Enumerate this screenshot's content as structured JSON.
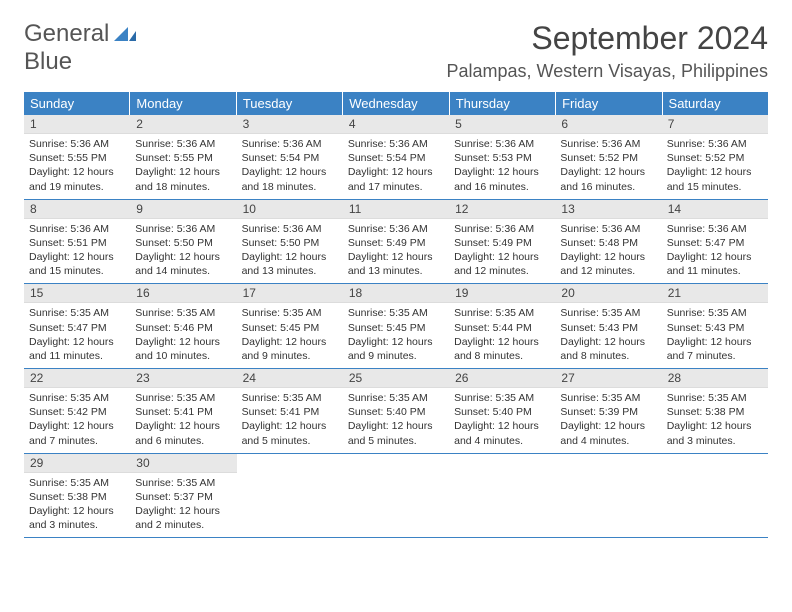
{
  "logo": {
    "word1": "General",
    "word2": "Blue"
  },
  "title": "September 2024",
  "location": "Palampas, Western Visayas, Philippines",
  "colors": {
    "accent": "#3b82c4",
    "daynum_bg": "#e8e8e8",
    "text": "#333333",
    "title_text": "#444444"
  },
  "daysOfWeek": [
    "Sunday",
    "Monday",
    "Tuesday",
    "Wednesday",
    "Thursday",
    "Friday",
    "Saturday"
  ],
  "weeks": [
    [
      {
        "n": "1",
        "sr": "Sunrise: 5:36 AM",
        "ss": "Sunset: 5:55 PM",
        "d1": "Daylight: 12 hours",
        "d2": "and 19 minutes."
      },
      {
        "n": "2",
        "sr": "Sunrise: 5:36 AM",
        "ss": "Sunset: 5:55 PM",
        "d1": "Daylight: 12 hours",
        "d2": "and 18 minutes."
      },
      {
        "n": "3",
        "sr": "Sunrise: 5:36 AM",
        "ss": "Sunset: 5:54 PM",
        "d1": "Daylight: 12 hours",
        "d2": "and 18 minutes."
      },
      {
        "n": "4",
        "sr": "Sunrise: 5:36 AM",
        "ss": "Sunset: 5:54 PM",
        "d1": "Daylight: 12 hours",
        "d2": "and 17 minutes."
      },
      {
        "n": "5",
        "sr": "Sunrise: 5:36 AM",
        "ss": "Sunset: 5:53 PM",
        "d1": "Daylight: 12 hours",
        "d2": "and 16 minutes."
      },
      {
        "n": "6",
        "sr": "Sunrise: 5:36 AM",
        "ss": "Sunset: 5:52 PM",
        "d1": "Daylight: 12 hours",
        "d2": "and 16 minutes."
      },
      {
        "n": "7",
        "sr": "Sunrise: 5:36 AM",
        "ss": "Sunset: 5:52 PM",
        "d1": "Daylight: 12 hours",
        "d2": "and 15 minutes."
      }
    ],
    [
      {
        "n": "8",
        "sr": "Sunrise: 5:36 AM",
        "ss": "Sunset: 5:51 PM",
        "d1": "Daylight: 12 hours",
        "d2": "and 15 minutes."
      },
      {
        "n": "9",
        "sr": "Sunrise: 5:36 AM",
        "ss": "Sunset: 5:50 PM",
        "d1": "Daylight: 12 hours",
        "d2": "and 14 minutes."
      },
      {
        "n": "10",
        "sr": "Sunrise: 5:36 AM",
        "ss": "Sunset: 5:50 PM",
        "d1": "Daylight: 12 hours",
        "d2": "and 13 minutes."
      },
      {
        "n": "11",
        "sr": "Sunrise: 5:36 AM",
        "ss": "Sunset: 5:49 PM",
        "d1": "Daylight: 12 hours",
        "d2": "and 13 minutes."
      },
      {
        "n": "12",
        "sr": "Sunrise: 5:36 AM",
        "ss": "Sunset: 5:49 PM",
        "d1": "Daylight: 12 hours",
        "d2": "and 12 minutes."
      },
      {
        "n": "13",
        "sr": "Sunrise: 5:36 AM",
        "ss": "Sunset: 5:48 PM",
        "d1": "Daylight: 12 hours",
        "d2": "and 12 minutes."
      },
      {
        "n": "14",
        "sr": "Sunrise: 5:36 AM",
        "ss": "Sunset: 5:47 PM",
        "d1": "Daylight: 12 hours",
        "d2": "and 11 minutes."
      }
    ],
    [
      {
        "n": "15",
        "sr": "Sunrise: 5:35 AM",
        "ss": "Sunset: 5:47 PM",
        "d1": "Daylight: 12 hours",
        "d2": "and 11 minutes."
      },
      {
        "n": "16",
        "sr": "Sunrise: 5:35 AM",
        "ss": "Sunset: 5:46 PM",
        "d1": "Daylight: 12 hours",
        "d2": "and 10 minutes."
      },
      {
        "n": "17",
        "sr": "Sunrise: 5:35 AM",
        "ss": "Sunset: 5:45 PM",
        "d1": "Daylight: 12 hours",
        "d2": "and 9 minutes."
      },
      {
        "n": "18",
        "sr": "Sunrise: 5:35 AM",
        "ss": "Sunset: 5:45 PM",
        "d1": "Daylight: 12 hours",
        "d2": "and 9 minutes."
      },
      {
        "n": "19",
        "sr": "Sunrise: 5:35 AM",
        "ss": "Sunset: 5:44 PM",
        "d1": "Daylight: 12 hours",
        "d2": "and 8 minutes."
      },
      {
        "n": "20",
        "sr": "Sunrise: 5:35 AM",
        "ss": "Sunset: 5:43 PM",
        "d1": "Daylight: 12 hours",
        "d2": "and 8 minutes."
      },
      {
        "n": "21",
        "sr": "Sunrise: 5:35 AM",
        "ss": "Sunset: 5:43 PM",
        "d1": "Daylight: 12 hours",
        "d2": "and 7 minutes."
      }
    ],
    [
      {
        "n": "22",
        "sr": "Sunrise: 5:35 AM",
        "ss": "Sunset: 5:42 PM",
        "d1": "Daylight: 12 hours",
        "d2": "and 7 minutes."
      },
      {
        "n": "23",
        "sr": "Sunrise: 5:35 AM",
        "ss": "Sunset: 5:41 PM",
        "d1": "Daylight: 12 hours",
        "d2": "and 6 minutes."
      },
      {
        "n": "24",
        "sr": "Sunrise: 5:35 AM",
        "ss": "Sunset: 5:41 PM",
        "d1": "Daylight: 12 hours",
        "d2": "and 5 minutes."
      },
      {
        "n": "25",
        "sr": "Sunrise: 5:35 AM",
        "ss": "Sunset: 5:40 PM",
        "d1": "Daylight: 12 hours",
        "d2": "and 5 minutes."
      },
      {
        "n": "26",
        "sr": "Sunrise: 5:35 AM",
        "ss": "Sunset: 5:40 PM",
        "d1": "Daylight: 12 hours",
        "d2": "and 4 minutes."
      },
      {
        "n": "27",
        "sr": "Sunrise: 5:35 AM",
        "ss": "Sunset: 5:39 PM",
        "d1": "Daylight: 12 hours",
        "d2": "and 4 minutes."
      },
      {
        "n": "28",
        "sr": "Sunrise: 5:35 AM",
        "ss": "Sunset: 5:38 PM",
        "d1": "Daylight: 12 hours",
        "d2": "and 3 minutes."
      }
    ],
    [
      {
        "n": "29",
        "sr": "Sunrise: 5:35 AM",
        "ss": "Sunset: 5:38 PM",
        "d1": "Daylight: 12 hours",
        "d2": "and 3 minutes."
      },
      {
        "n": "30",
        "sr": "Sunrise: 5:35 AM",
        "ss": "Sunset: 5:37 PM",
        "d1": "Daylight: 12 hours",
        "d2": "and 2 minutes."
      },
      {
        "empty": true
      },
      {
        "empty": true
      },
      {
        "empty": true
      },
      {
        "empty": true
      },
      {
        "empty": true
      }
    ]
  ]
}
